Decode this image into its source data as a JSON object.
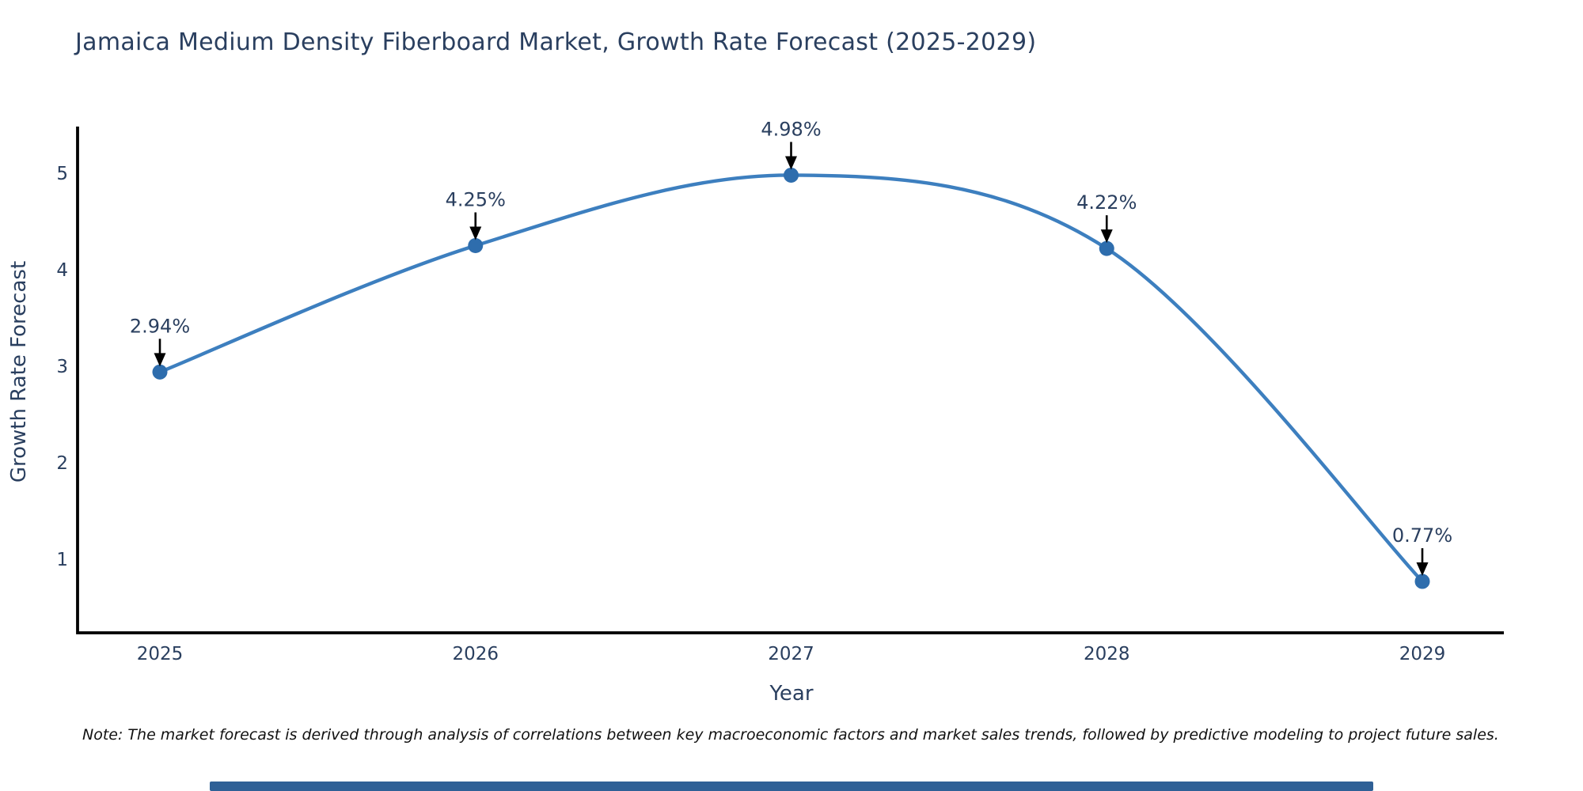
{
  "title": "Jamaica Medium Density Fiberboard Market, Growth Rate Forecast (2025-2029)",
  "note": "Note: The market forecast is derived through analysis of correlations between key macroeconomic factors and market sales trends, followed by predictive modeling to project future sales.",
  "chart_data": {
    "type": "line",
    "line_shape": "spline",
    "x": [
      2025,
      2026,
      2027,
      2028,
      2029
    ],
    "series": [
      {
        "name": "Growth Rate Forecast",
        "values": [
          2.94,
          4.25,
          4.98,
          4.22,
          0.77
        ]
      }
    ],
    "point_labels": [
      "2.94%",
      "4.25%",
      "4.98%",
      "4.22%",
      "0.77%"
    ],
    "title": "Jamaica Medium Density Fiberboard Market, Growth Rate Forecast (2025-2029)",
    "xlabel": "Year",
    "ylabel": "Growth Rate Forecast",
    "yticks": [
      1,
      2,
      3,
      4,
      5
    ],
    "ylim": [
      0.24,
      5.48
    ],
    "grid": false,
    "legend_position": "none",
    "annotations_have_arrows": true,
    "colors": {
      "line": "#3d7fbf",
      "marker": "#2e6dad",
      "axis": "#000000",
      "tick_text": "#2a3f5f",
      "annotation_text": "#2a3f5f",
      "arrow": "#000000",
      "title_text": "#2a3f5f",
      "footer_bar": "#2f6096"
    }
  }
}
